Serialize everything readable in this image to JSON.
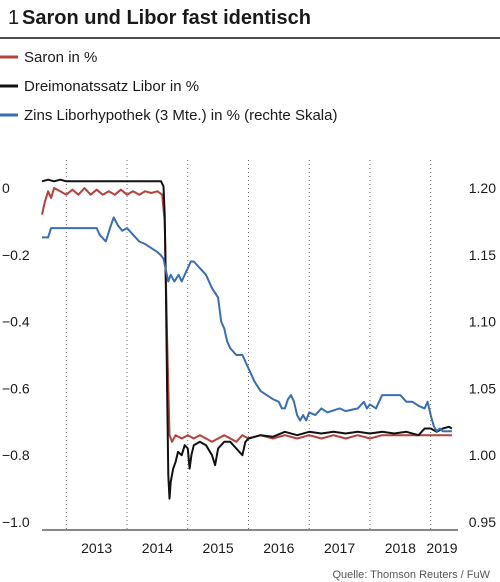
{
  "chart_data": {
    "type": "line",
    "title_number": "1",
    "title": "Saron und Libor fast identisch",
    "source": "Quelle: Thomson Reuters / FuW",
    "x_ticks": [
      "2013",
      "2014",
      "2015",
      "2016",
      "2017",
      "2018",
      "2019"
    ],
    "x_range": [
      2012.6,
      2019.45
    ],
    "y_left": {
      "ticks": [
        "0",
        "−0.2",
        "−0.4",
        "−0.6",
        "−0.8",
        "−1.0"
      ],
      "tick_values": [
        0,
        -0.2,
        -0.4,
        -0.6,
        -0.8,
        -1.0
      ],
      "range": [
        -1.0,
        0.0
      ]
    },
    "y_right": {
      "ticks": [
        "1.20",
        "1.15",
        "1.10",
        "1.05",
        "1.00",
        "0.95"
      ],
      "tick_values": [
        1.2,
        1.15,
        1.1,
        1.05,
        1.0,
        0.95
      ],
      "range": [
        0.95,
        1.2
      ]
    },
    "grid": "vertical dotted",
    "legend_placement": "top-left",
    "series": [
      {
        "name": "Saron in %",
        "axis": "left",
        "color": "#b5413a",
        "points": [
          [
            2012.6,
            -0.08
          ],
          [
            2012.65,
            -0.04
          ],
          [
            2012.7,
            -0.01
          ],
          [
            2012.75,
            -0.03
          ],
          [
            2012.8,
            0.0
          ],
          [
            2012.9,
            -0.01
          ],
          [
            2013.0,
            -0.02
          ],
          [
            2013.1,
            -0.005
          ],
          [
            2013.2,
            -0.02
          ],
          [
            2013.3,
            0.0
          ],
          [
            2013.4,
            -0.02
          ],
          [
            2013.5,
            -0.005
          ],
          [
            2013.6,
            -0.02
          ],
          [
            2013.7,
            -0.01
          ],
          [
            2013.8,
            -0.02
          ],
          [
            2013.9,
            -0.005
          ],
          [
            2014.0,
            -0.02
          ],
          [
            2014.1,
            -0.01
          ],
          [
            2014.2,
            -0.02
          ],
          [
            2014.3,
            -0.01
          ],
          [
            2014.4,
            -0.015
          ],
          [
            2014.5,
            -0.01
          ],
          [
            2014.58,
            -0.02
          ],
          [
            2014.62,
            -0.1
          ],
          [
            2014.66,
            -0.45
          ],
          [
            2014.7,
            -0.74
          ],
          [
            2014.74,
            -0.76
          ],
          [
            2014.8,
            -0.74
          ],
          [
            2014.9,
            -0.75
          ],
          [
            2015.0,
            -0.74
          ],
          [
            2015.1,
            -0.75
          ],
          [
            2015.2,
            -0.74
          ],
          [
            2015.3,
            -0.75
          ],
          [
            2015.4,
            -0.76
          ],
          [
            2015.5,
            -0.75
          ],
          [
            2015.6,
            -0.74
          ],
          [
            2015.7,
            -0.75
          ],
          [
            2015.8,
            -0.76
          ],
          [
            2015.9,
            -0.74
          ],
          [
            2016.0,
            -0.75
          ],
          [
            2016.2,
            -0.74
          ],
          [
            2016.4,
            -0.75
          ],
          [
            2016.6,
            -0.74
          ],
          [
            2016.8,
            -0.75
          ],
          [
            2017.0,
            -0.74
          ],
          [
            2017.2,
            -0.75
          ],
          [
            2017.4,
            -0.74
          ],
          [
            2017.6,
            -0.75
          ],
          [
            2017.8,
            -0.74
          ],
          [
            2018.0,
            -0.75
          ],
          [
            2018.2,
            -0.74
          ],
          [
            2018.4,
            -0.74
          ],
          [
            2018.6,
            -0.74
          ],
          [
            2018.8,
            -0.74
          ],
          [
            2019.0,
            -0.74
          ],
          [
            2019.2,
            -0.74
          ],
          [
            2019.35,
            -0.74
          ]
        ]
      },
      {
        "name": "Dreimonatssatz Libor in %",
        "axis": "left",
        "color": "#111111",
        "points": [
          [
            2012.6,
            0.02
          ],
          [
            2012.7,
            0.025
          ],
          [
            2012.8,
            0.02
          ],
          [
            2012.9,
            0.025
          ],
          [
            2013.0,
            0.02
          ],
          [
            2013.2,
            0.02
          ],
          [
            2013.4,
            0.02
          ],
          [
            2013.6,
            0.02
          ],
          [
            2013.8,
            0.02
          ],
          [
            2014.0,
            0.02
          ],
          [
            2014.2,
            0.02
          ],
          [
            2014.4,
            0.02
          ],
          [
            2014.56,
            0.02
          ],
          [
            2014.6,
            0.005
          ],
          [
            2014.62,
            -0.08
          ],
          [
            2014.64,
            -0.3
          ],
          [
            2014.66,
            -0.6
          ],
          [
            2014.68,
            -0.86
          ],
          [
            2014.7,
            -0.93
          ],
          [
            2014.72,
            -0.88
          ],
          [
            2014.76,
            -0.84
          ],
          [
            2014.8,
            -0.82
          ],
          [
            2014.84,
            -0.79
          ],
          [
            2014.9,
            -0.8
          ],
          [
            2014.95,
            -0.77
          ],
          [
            2015.0,
            -0.78
          ],
          [
            2015.03,
            -0.84
          ],
          [
            2015.06,
            -0.8
          ],
          [
            2015.1,
            -0.77
          ],
          [
            2015.2,
            -0.76
          ],
          [
            2015.3,
            -0.77
          ],
          [
            2015.4,
            -0.8
          ],
          [
            2015.45,
            -0.83
          ],
          [
            2015.5,
            -0.78
          ],
          [
            2015.6,
            -0.76
          ],
          [
            2015.7,
            -0.76
          ],
          [
            2015.8,
            -0.78
          ],
          [
            2015.9,
            -0.8
          ],
          [
            2015.95,
            -0.76
          ],
          [
            2016.0,
            -0.75
          ],
          [
            2016.2,
            -0.74
          ],
          [
            2016.4,
            -0.745
          ],
          [
            2016.6,
            -0.73
          ],
          [
            2016.8,
            -0.74
          ],
          [
            2017.0,
            -0.73
          ],
          [
            2017.2,
            -0.735
          ],
          [
            2017.4,
            -0.73
          ],
          [
            2017.6,
            -0.735
          ],
          [
            2017.8,
            -0.73
          ],
          [
            2018.0,
            -0.735
          ],
          [
            2018.2,
            -0.73
          ],
          [
            2018.4,
            -0.735
          ],
          [
            2018.6,
            -0.73
          ],
          [
            2018.8,
            -0.74
          ],
          [
            2018.9,
            -0.72
          ],
          [
            2019.0,
            -0.72
          ],
          [
            2019.1,
            -0.73
          ],
          [
            2019.2,
            -0.72
          ],
          [
            2019.3,
            -0.715
          ],
          [
            2019.35,
            -0.72
          ]
        ]
      },
      {
        "name": "Zins Liborhypothek (3 Mte.) in % (rechte Skala)",
        "axis": "right",
        "color": "#3a6db5",
        "points": [
          [
            2012.6,
            1.163
          ],
          [
            2012.7,
            1.163
          ],
          [
            2012.75,
            1.17
          ],
          [
            2013.0,
            1.17
          ],
          [
            2013.2,
            1.17
          ],
          [
            2013.4,
            1.17
          ],
          [
            2013.5,
            1.17
          ],
          [
            2013.55,
            1.165
          ],
          [
            2013.65,
            1.16
          ],
          [
            2013.72,
            1.17
          ],
          [
            2013.78,
            1.178
          ],
          [
            2013.85,
            1.172
          ],
          [
            2013.92,
            1.168
          ],
          [
            2014.0,
            1.17
          ],
          [
            2014.1,
            1.165
          ],
          [
            2014.2,
            1.16
          ],
          [
            2014.3,
            1.158
          ],
          [
            2014.4,
            1.155
          ],
          [
            2014.5,
            1.152
          ],
          [
            2014.55,
            1.15
          ],
          [
            2014.6,
            1.147
          ],
          [
            2014.68,
            1.13
          ],
          [
            2014.72,
            1.135
          ],
          [
            2014.78,
            1.13
          ],
          [
            2014.85,
            1.135
          ],
          [
            2014.9,
            1.13
          ],
          [
            2014.95,
            1.135
          ],
          [
            2015.0,
            1.14
          ],
          [
            2015.05,
            1.145
          ],
          [
            2015.1,
            1.145
          ],
          [
            2015.2,
            1.14
          ],
          [
            2015.3,
            1.135
          ],
          [
            2015.4,
            1.125
          ],
          [
            2015.5,
            1.118
          ],
          [
            2015.55,
            1.1
          ],
          [
            2015.6,
            1.095
          ],
          [
            2015.65,
            1.085
          ],
          [
            2015.7,
            1.08
          ],
          [
            2015.8,
            1.075
          ],
          [
            2015.9,
            1.075
          ],
          [
            2016.0,
            1.065
          ],
          [
            2016.1,
            1.055
          ],
          [
            2016.2,
            1.048
          ],
          [
            2016.3,
            1.045
          ],
          [
            2016.4,
            1.042
          ],
          [
            2016.5,
            1.04
          ],
          [
            2016.55,
            1.035
          ],
          [
            2016.6,
            1.035
          ],
          [
            2016.65,
            1.042
          ],
          [
            2016.7,
            1.045
          ],
          [
            2016.75,
            1.04
          ],
          [
            2016.8,
            1.03
          ],
          [
            2016.85,
            1.026
          ],
          [
            2016.9,
            1.03
          ],
          [
            2016.95,
            1.026
          ],
          [
            2017.0,
            1.032
          ],
          [
            2017.1,
            1.03
          ],
          [
            2017.2,
            1.035
          ],
          [
            2017.3,
            1.032
          ],
          [
            2017.5,
            1.035
          ],
          [
            2017.6,
            1.033
          ],
          [
            2017.8,
            1.035
          ],
          [
            2017.9,
            1.04
          ],
          [
            2017.95,
            1.035
          ],
          [
            2018.0,
            1.038
          ],
          [
            2018.1,
            1.035
          ],
          [
            2018.2,
            1.045
          ],
          [
            2018.3,
            1.045
          ],
          [
            2018.4,
            1.045
          ],
          [
            2018.5,
            1.045
          ],
          [
            2018.6,
            1.04
          ],
          [
            2018.7,
            1.04
          ],
          [
            2018.8,
            1.037
          ],
          [
            2018.9,
            1.035
          ],
          [
            2018.95,
            1.04
          ],
          [
            2019.0,
            1.03
          ],
          [
            2019.05,
            1.022
          ],
          [
            2019.1,
            1.018
          ],
          [
            2019.15,
            1.02
          ],
          [
            2019.2,
            1.018
          ],
          [
            2019.25,
            1.018
          ],
          [
            2019.35,
            1.018
          ]
        ]
      }
    ]
  }
}
